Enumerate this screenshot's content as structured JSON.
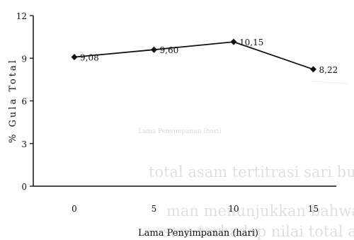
{
  "chart_data": {
    "type": "line",
    "x": [
      0,
      5,
      10,
      15
    ],
    "series": [
      {
        "values": [
          9.08,
          9.6,
          10.15,
          8.22
        ],
        "data_labels": [
          "9,08",
          "9,60",
          "10,15",
          "8,22"
        ]
      }
    ],
    "xlabel": "Lama Penyimpanan (hari)",
    "ylabel": "% Gula Total",
    "ylim": [
      0,
      12
    ],
    "yticks": [
      0,
      3,
      6,
      9,
      12
    ],
    "xticks": [
      0,
      5,
      10,
      15
    ],
    "grid": false,
    "legend": "none",
    "marker": "diamond",
    "colors": {
      "line": "#111111",
      "axis": "#111111"
    }
  },
  "bleed_through": {
    "faint_axis_label": "Lama Penyimpanan (hari)",
    "line1": "total asam tertitrasi sari buah murbei s",
    "line2": "man menunjukkan bahwa perlakuan l",
    "line3": "sam terhadap nilai total asam te"
  }
}
